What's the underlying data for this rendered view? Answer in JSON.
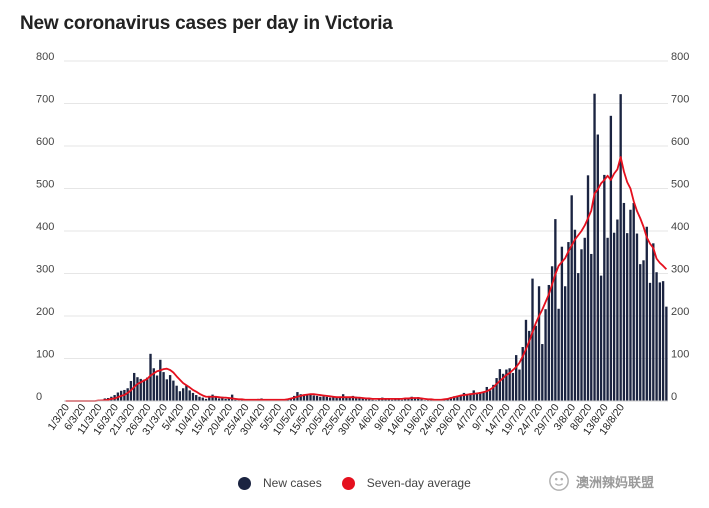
{
  "title": "New coronavirus cases per day in Victoria",
  "legend": {
    "new_cases": "New cases",
    "average": "Seven-day average"
  },
  "watermark": "澳洲辣妈联盟",
  "colors": {
    "bars": "#1b2441",
    "average": "#e5101e",
    "grid": "#e6e6e6"
  },
  "chart_data": {
    "type": "bar",
    "ylim": [
      0,
      800
    ],
    "yticks": [
      0,
      100,
      200,
      300,
      400,
      500,
      600,
      700,
      800
    ],
    "yaxis_right": true,
    "grid": true,
    "legend_position": "bottom",
    "xtick_labels": [
      "1/3/20",
      "6/3/20",
      "11/3/20",
      "16/3/20",
      "21/3/20",
      "26/3/20",
      "31/3/20",
      "5/4/20",
      "10/4/20",
      "15/4/20",
      "20/4/20",
      "25/4/20",
      "30/4/20",
      "5/5/20",
      "10/5/20",
      "15/5/20",
      "20/5/20",
      "25/5/20",
      "30/5/20",
      "4/6/20",
      "9/6/20",
      "14/6/20",
      "19/6/20",
      "24/6/20",
      "29/6/20",
      "4/7/20",
      "9/7/20",
      "14/7/20",
      "19/7/20",
      "24/7/20",
      "29/7/20",
      "3/8/20",
      "8/8/20",
      "13/8/20",
      "18/8/20"
    ],
    "start_date": "1/3/20",
    "series": [
      {
        "name": "New cases",
        "type": "bar",
        "values": [
          0,
          0,
          0,
          0,
          0,
          0,
          0,
          0,
          1,
          1,
          2,
          3,
          6,
          7,
          10,
          14,
          20,
          24,
          26,
          30,
          47,
          66,
          56,
          52,
          50,
          55,
          111,
          77,
          60,
          97,
          68,
          51,
          61,
          48,
          36,
          23,
          30,
          37,
          25,
          19,
          14,
          10,
          8,
          5,
          12,
          15,
          9,
          6,
          10,
          5,
          8,
          15,
          3,
          2,
          4,
          2,
          3,
          4,
          4,
          5,
          6,
          3,
          2,
          4,
          3,
          1,
          2,
          3,
          5,
          7,
          12,
          21,
          16,
          15,
          14,
          17,
          13,
          12,
          10,
          11,
          10,
          8,
          9,
          7,
          8,
          16,
          10,
          8,
          12,
          10,
          7,
          6,
          5,
          4,
          3,
          2,
          4,
          8,
          5,
          4,
          3,
          4,
          4,
          3,
          7,
          8,
          10,
          6,
          9,
          4,
          2,
          3,
          3,
          1,
          2,
          4,
          5,
          6,
          9,
          11,
          12,
          14,
          19,
          14,
          18,
          25,
          17,
          21,
          20,
          33,
          25,
          38,
          54,
          75,
          64,
          74,
          77,
          66,
          108,
          74,
          127,
          191,
          165,
          288,
          177,
          270,
          134,
          216,
          273,
          317,
          428,
          217,
          363,
          270,
          374,
          484,
          403,
          301,
          357,
          384,
          531,
          346,
          723,
          627,
          295,
          532,
          384,
          671,
          396,
          427,
          722,
          466,
          395,
          450,
          466,
          394,
          322,
          331,
          410,
          278,
          371,
          303,
          279,
          282,
          222
        ]
      },
      {
        "name": "Seven-day average",
        "type": "line",
        "values": [
          0,
          0,
          0,
          0,
          0,
          0,
          0,
          0,
          0,
          0,
          1,
          1,
          2,
          3,
          5,
          6,
          9,
          12,
          14,
          19,
          25,
          33,
          40,
          44,
          48,
          52,
          60,
          65,
          70,
          72,
          75,
          76,
          73,
          67,
          58,
          50,
          42,
          37,
          32,
          26,
          22,
          17,
          13,
          10,
          10,
          10,
          10,
          9,
          8,
          8,
          7,
          6,
          5,
          4,
          4,
          3,
          3,
          3,
          3,
          3,
          3,
          3,
          3,
          3,
          3,
          3,
          3,
          3,
          4,
          6,
          8,
          10,
          12,
          14,
          15,
          16,
          16,
          15,
          14,
          13,
          12,
          11,
          10,
          9,
          9,
          9,
          9,
          9,
          9,
          8,
          8,
          7,
          6,
          6,
          5,
          5,
          5,
          5,
          5,
          5,
          5,
          5,
          5,
          5,
          6,
          6,
          7,
          7,
          7,
          6,
          5,
          4,
          4,
          3,
          3,
          3,
          4,
          5,
          7,
          9,
          11,
          13,
          14,
          15,
          16,
          17,
          18,
          19,
          21,
          23,
          27,
          32,
          40,
          47,
          54,
          61,
          66,
          73,
          80,
          90,
          105,
          122,
          140,
          162,
          183,
          200,
          215,
          233,
          251,
          274,
          298,
          318,
          327,
          336,
          352,
          366,
          380,
          390,
          400,
          413,
          430,
          448,
          488,
          498,
          512,
          520,
          530,
          520,
          535,
          545,
          574,
          540,
          515,
          500,
          470,
          447,
          430,
          410,
          385,
          370,
          360,
          335,
          325,
          318,
          310
        ]
      }
    ]
  }
}
